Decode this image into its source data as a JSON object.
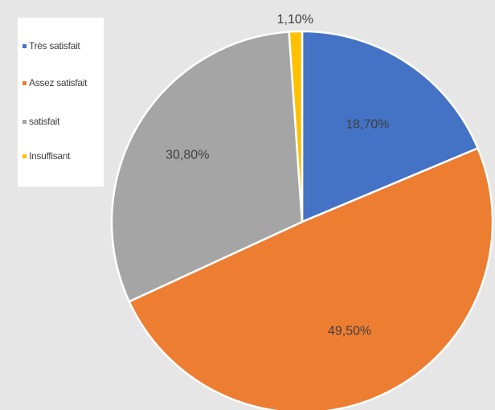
{
  "chart_data": {
    "type": "pie",
    "title": "",
    "categories": [
      "Très satisfait",
      "Assez satisfait",
      "satisfait",
      "Insuffisant"
    ],
    "values": [
      18.7,
      49.5,
      30.8,
      1.1
    ],
    "data_labels": [
      "18,70%",
      "49,50%",
      "30,80%",
      "1,10%"
    ],
    "colors": [
      "#4472c4",
      "#ed7d31",
      "#a5a5a5",
      "#ffc000"
    ],
    "legend_position": "top-left",
    "start_angle": "12 o'clock",
    "direction": "clockwise"
  }
}
